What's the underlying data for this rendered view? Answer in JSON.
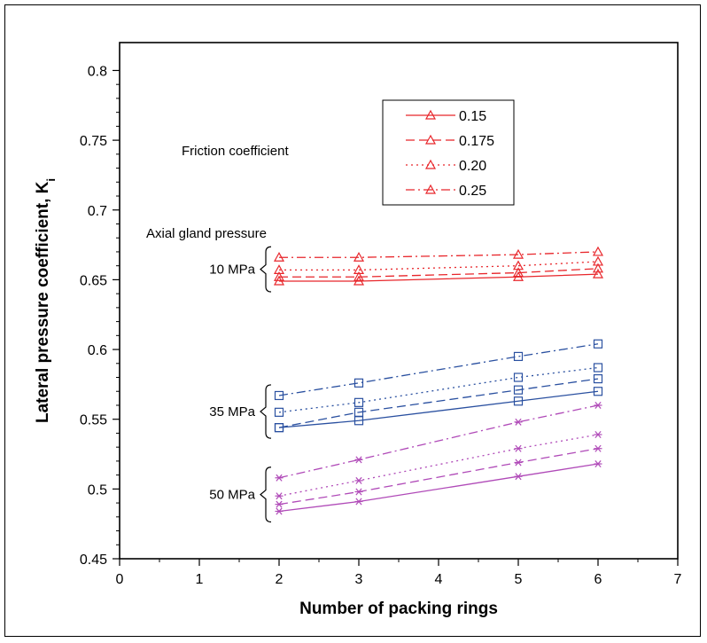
{
  "chart_data": {
    "type": "line",
    "xlabel": "Number of packing rings",
    "ylabel": "Lateral pressure coefficient, K",
    "ylabel_subscript": "i",
    "xlim": [
      0,
      7
    ],
    "ylim": [
      0.45,
      0.82
    ],
    "x_ticks": [
      "0",
      "1",
      "2",
      "3",
      "4",
      "5",
      "6",
      "7"
    ],
    "y_ticks": [
      "0.45",
      "0.5",
      "0.55",
      "0.6",
      "0.65",
      "0.7",
      "0.75",
      "0.8"
    ],
    "grid": false,
    "legend": {
      "title": "Friction coefficient",
      "placement": "top-center",
      "entries": [
        "0.15",
        "0.175",
        "0.20",
        "0.25"
      ]
    },
    "group_title": "Axial gland pressure",
    "groups": [
      {
        "label": "10 MPa",
        "color": "#e8262b",
        "marker": "triangle",
        "x": [
          2,
          3,
          5,
          6
        ],
        "series": [
          {
            "name": "0.15",
            "values": [
              0.649,
              0.649,
              0.652,
              0.654
            ]
          },
          {
            "name": "0.175",
            "values": [
              0.652,
              0.652,
              0.655,
              0.658
            ]
          },
          {
            "name": "0.20",
            "values": [
              0.657,
              0.657,
              0.66,
              0.663
            ]
          },
          {
            "name": "0.25",
            "values": [
              0.666,
              0.666,
              0.668,
              0.67
            ]
          }
        ]
      },
      {
        "label": "35 MPa",
        "color": "#2a50a0",
        "marker": "square",
        "x": [
          2,
          3,
          5,
          6
        ],
        "series": [
          {
            "name": "0.15",
            "values": [
              0.544,
              0.549,
              0.563,
              0.57
            ]
          },
          {
            "name": "0.175",
            "values": [
              0.544,
              0.555,
              0.571,
              0.579
            ]
          },
          {
            "name": "0.20",
            "values": [
              0.555,
              0.562,
              0.58,
              0.587
            ]
          },
          {
            "name": "0.25",
            "values": [
              0.567,
              0.576,
              0.595,
              0.604
            ]
          }
        ]
      },
      {
        "label": "50 MPa",
        "color": "#b04ab8",
        "marker": "asterisk",
        "x": [
          2,
          3,
          5,
          6
        ],
        "series": [
          {
            "name": "0.15",
            "values": [
              0.484,
              0.491,
              0.509,
              0.518
            ]
          },
          {
            "name": "0.175",
            "values": [
              0.489,
              0.498,
              0.519,
              0.529
            ]
          },
          {
            "name": "0.20",
            "values": [
              0.495,
              0.506,
              0.529,
              0.539
            ]
          },
          {
            "name": "0.25",
            "values": [
              0.508,
              0.521,
              0.548,
              0.56
            ]
          }
        ]
      }
    ],
    "line_styles": [
      "solid",
      "dash",
      "dot",
      "dashdot"
    ]
  }
}
